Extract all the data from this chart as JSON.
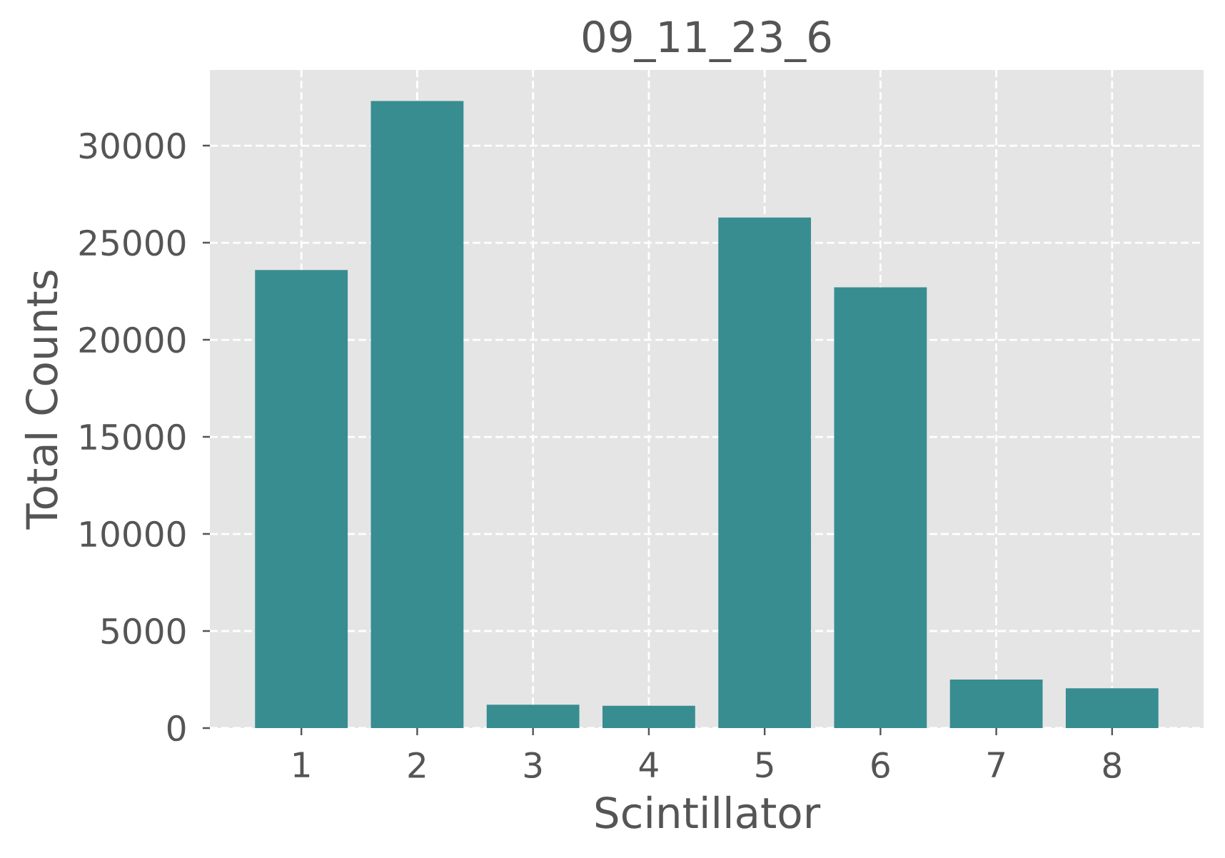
{
  "chart_data": {
    "type": "bar",
    "title": "09_11_23_6",
    "xlabel": "Scintillator",
    "ylabel": "Total Counts",
    "categories": [
      "1",
      "2",
      "3",
      "4",
      "5",
      "6",
      "7",
      "8"
    ],
    "values": [
      23600,
      32300,
      1200,
      1150,
      26300,
      22700,
      2500,
      2050
    ],
    "color": "#388d91",
    "ylim": [
      0,
      33900
    ],
    "yticks": [
      0,
      5000,
      10000,
      15000,
      20000,
      25000,
      30000
    ],
    "grid": true
  }
}
